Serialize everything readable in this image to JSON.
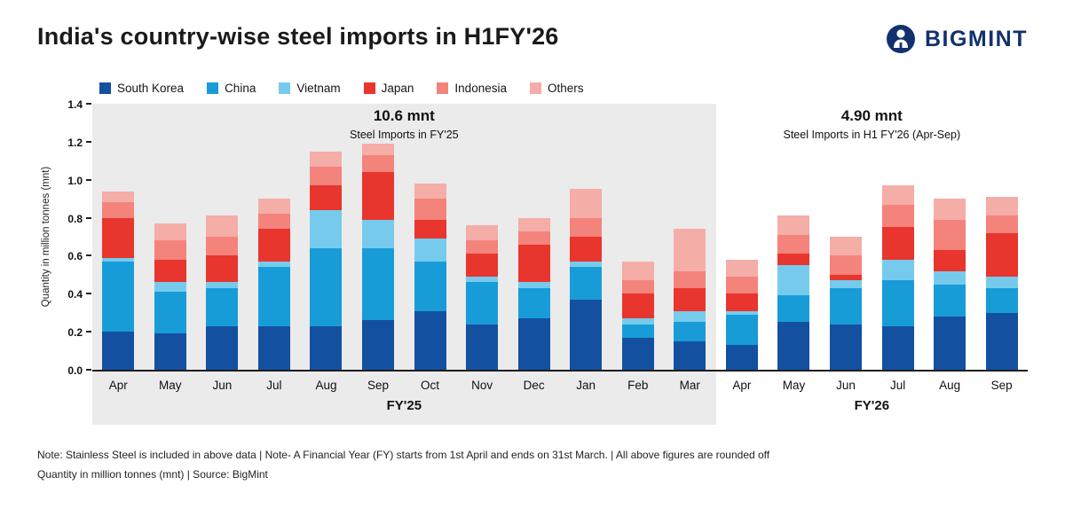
{
  "header": {
    "title": "India's country-wise steel imports in H1FY'26",
    "brand": "BIGMINT"
  },
  "chart_data": {
    "type": "bar",
    "stacked": true,
    "ylabel": "Quantity in million tonnes (mnt)",
    "ylim": [
      0,
      1.4
    ],
    "ytick_step": 0.2,
    "grid": false,
    "legend_position": "top-left",
    "groups": [
      {
        "label": "FY'25",
        "categories": [
          "Apr",
          "May",
          "Jun",
          "Jul",
          "Aug",
          "Sep",
          "Oct",
          "Nov",
          "Dec",
          "Jan",
          "Feb",
          "Mar"
        ],
        "annotation_title": "10.6 mnt",
        "annotation_subtitle": "Steel Imports in FY'25",
        "panel_color": "#ebebeb"
      },
      {
        "label": "FY'26",
        "categories": [
          "Apr",
          "May",
          "Jun",
          "Jul",
          "Aug",
          "Sep"
        ],
        "annotation_title": "4.90 mnt",
        "annotation_subtitle": "Steel Imports in H1 FY'26 (Apr-Sep)",
        "panel_color": "#ffffff"
      }
    ],
    "series": [
      {
        "name": "South Korea",
        "color": "#1450a0",
        "values": [
          0.2,
          0.19,
          0.23,
          0.23,
          0.23,
          0.26,
          0.31,
          0.24,
          0.27,
          0.37,
          0.17,
          0.15,
          0.13,
          0.25,
          0.24,
          0.23,
          0.28,
          0.3
        ]
      },
      {
        "name": "China",
        "color": "#189cd8",
        "values": [
          0.37,
          0.22,
          0.2,
          0.31,
          0.41,
          0.38,
          0.26,
          0.22,
          0.16,
          0.17,
          0.07,
          0.1,
          0.16,
          0.14,
          0.19,
          0.24,
          0.17,
          0.13
        ]
      },
      {
        "name": "Vietnam",
        "color": "#76cbec",
        "values": [
          0.02,
          0.05,
          0.03,
          0.03,
          0.2,
          0.15,
          0.12,
          0.03,
          0.03,
          0.03,
          0.03,
          0.06,
          0.02,
          0.16,
          0.04,
          0.11,
          0.07,
          0.06
        ]
      },
      {
        "name": "Japan",
        "color": "#e8352e",
        "values": [
          0.21,
          0.12,
          0.14,
          0.17,
          0.13,
          0.25,
          0.1,
          0.12,
          0.2,
          0.13,
          0.13,
          0.12,
          0.09,
          0.06,
          0.03,
          0.17,
          0.11,
          0.23
        ]
      },
      {
        "name": "Indonesia",
        "color": "#f4837c",
        "values": [
          0.08,
          0.1,
          0.1,
          0.08,
          0.1,
          0.09,
          0.11,
          0.07,
          0.07,
          0.1,
          0.07,
          0.09,
          0.09,
          0.1,
          0.1,
          0.12,
          0.16,
          0.09
        ]
      },
      {
        "name": "Others",
        "color": "#f5ada7",
        "values": [
          0.06,
          0.09,
          0.11,
          0.08,
          0.08,
          0.06,
          0.08,
          0.08,
          0.07,
          0.15,
          0.1,
          0.22,
          0.09,
          0.1,
          0.1,
          0.1,
          0.11,
          0.1
        ]
      }
    ]
  },
  "footer": {
    "line1": "Note: Stainless Steel is included in above data  |  Note- A Financial Year (FY) starts from 1st April and ends on 31st March.  |  All above figures are rounded off",
    "line2": "Quantity in million tonnes (mnt)  |  Source: BigMint"
  }
}
